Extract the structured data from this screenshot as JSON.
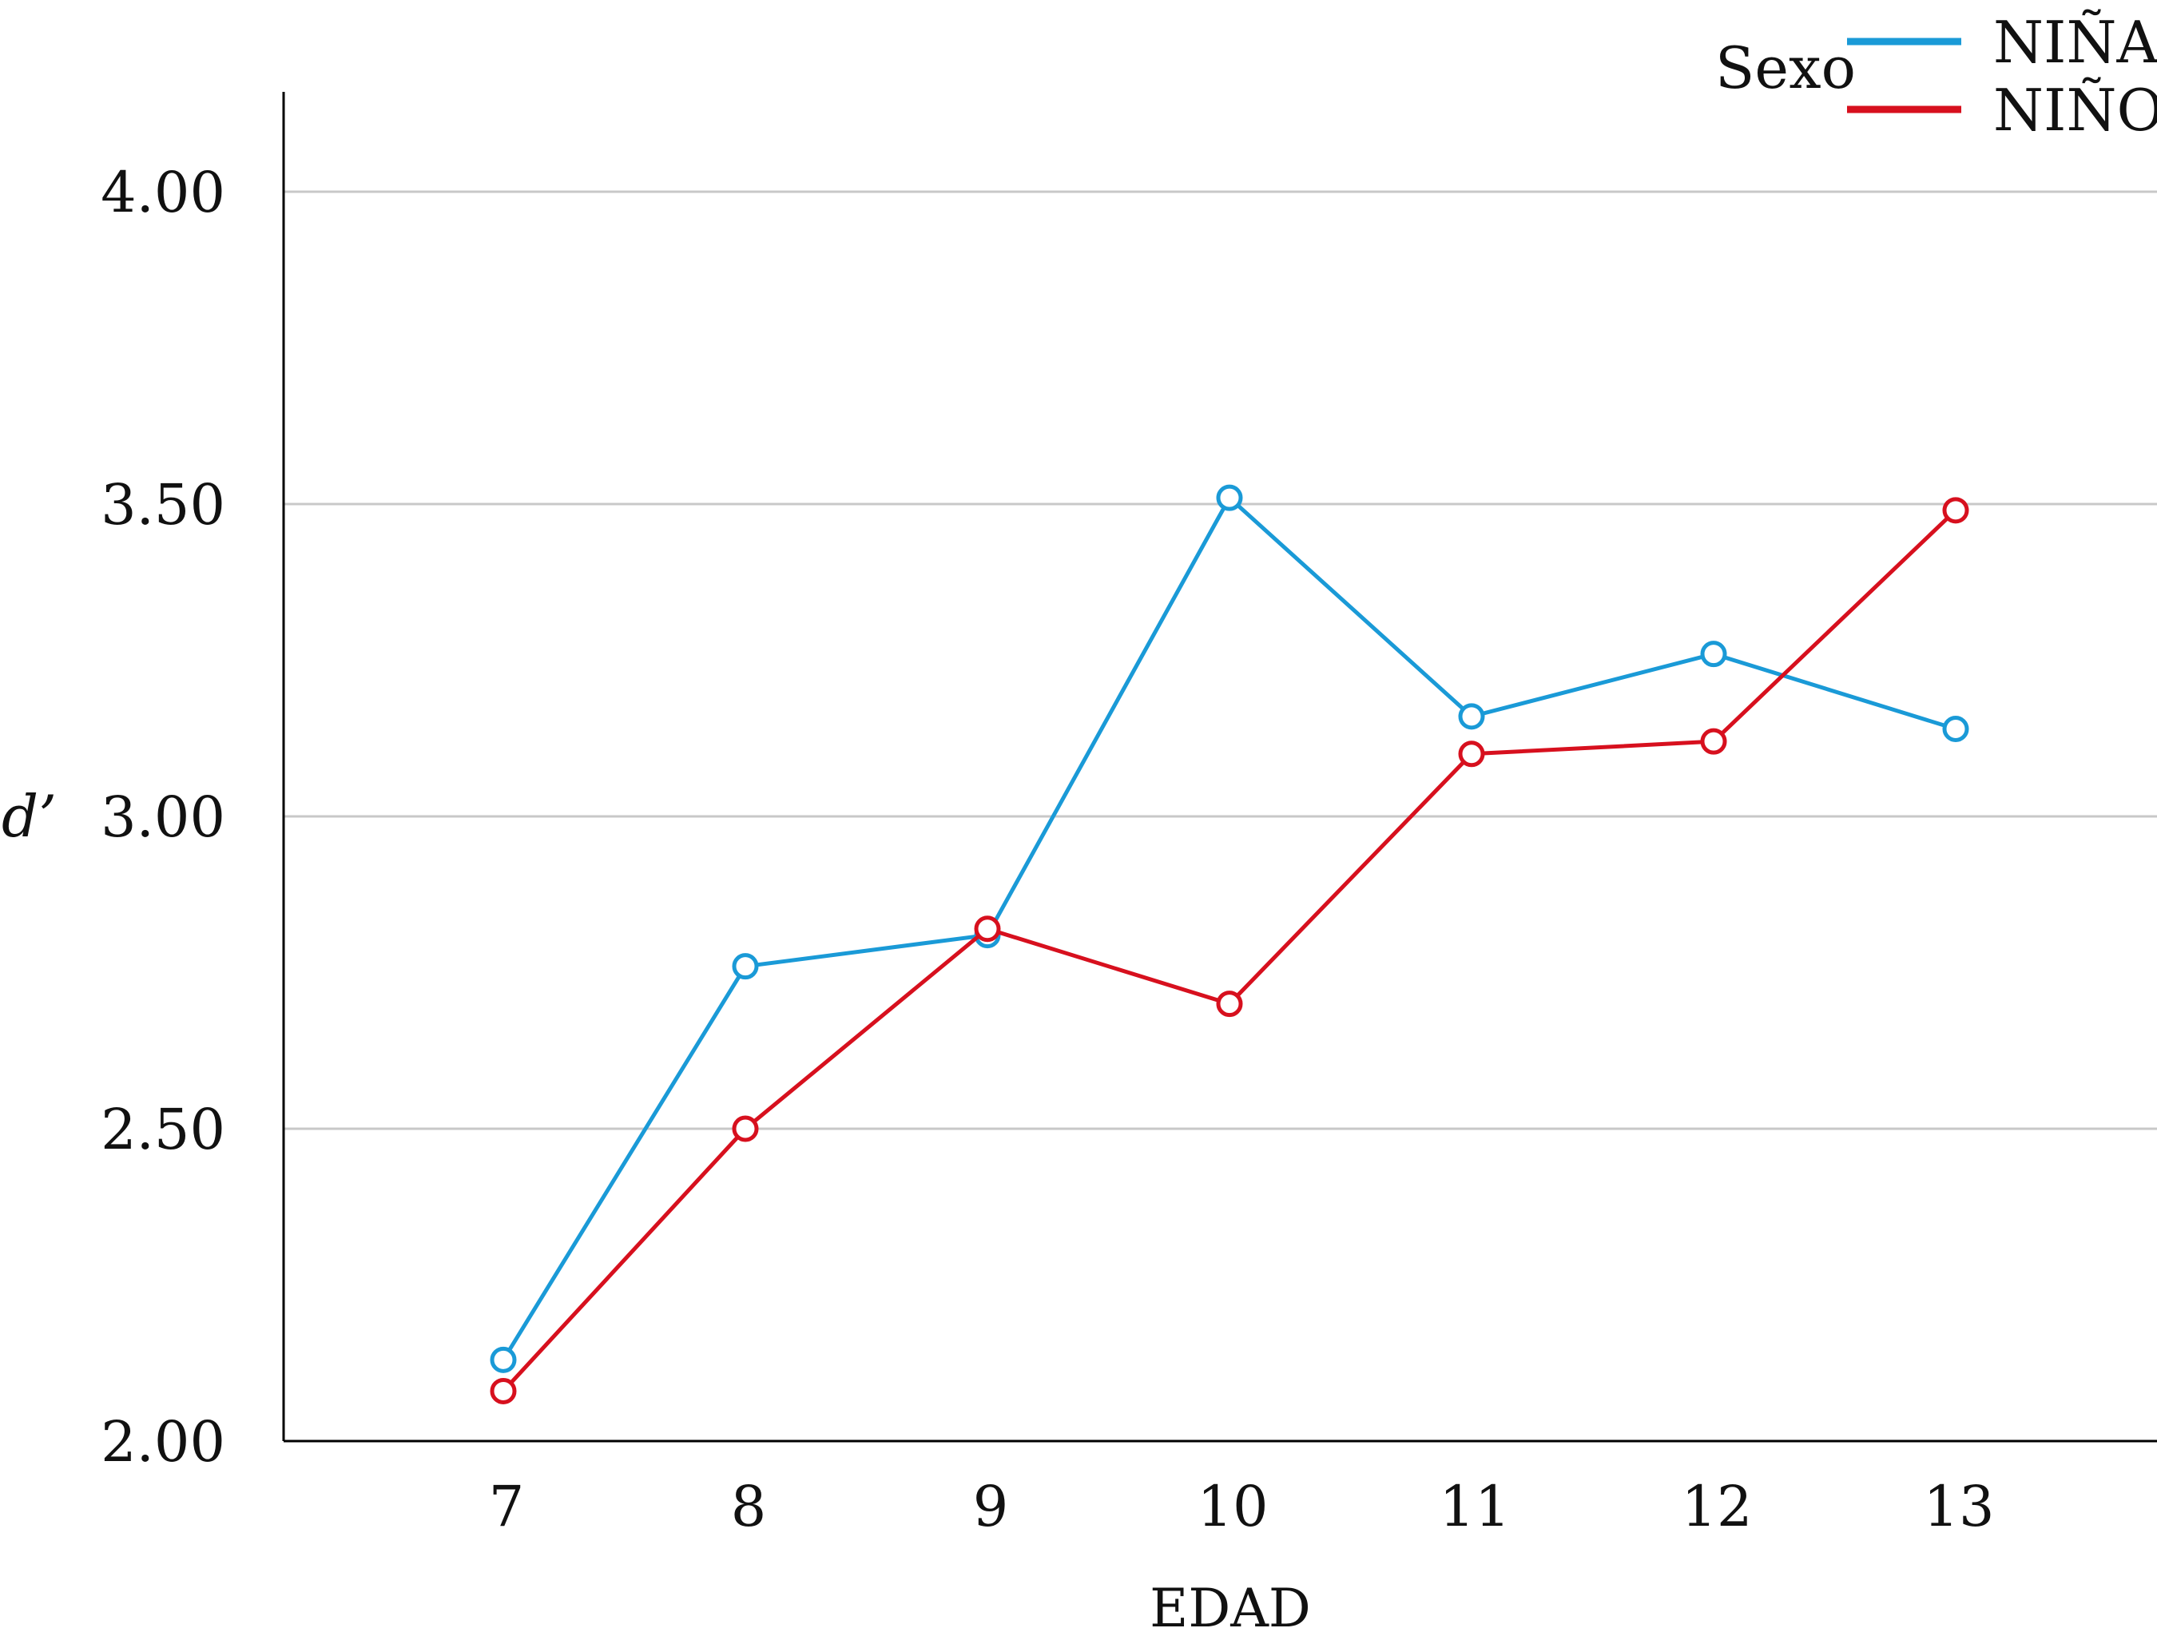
{
  "chart_data": {
    "type": "line",
    "xlabel": "EDAD",
    "ylabel": "d’",
    "x": [
      7,
      8,
      9,
      10,
      11,
      12,
      13
    ],
    "ylim": [
      2.0,
      4.15
    ],
    "yticks": [
      "2.00",
      "2.50",
      "3.00",
      "3.50",
      "4.00"
    ],
    "ytick_values": [
      2.0,
      2.5,
      3.0,
      3.5,
      4.0
    ],
    "grid": "horizontal",
    "legend": {
      "title": "Sexo",
      "placement": "top-right"
    },
    "series": [
      {
        "name": "NIÑA",
        "color": "#1a9ad7",
        "values": [
          2.13,
          2.76,
          2.81,
          3.51,
          3.16,
          3.26,
          3.14
        ]
      },
      {
        "name": "NIÑO",
        "color": "#d7101e",
        "values": [
          2.08,
          2.5,
          2.82,
          2.7,
          3.1,
          3.12,
          3.49
        ]
      }
    ]
  }
}
